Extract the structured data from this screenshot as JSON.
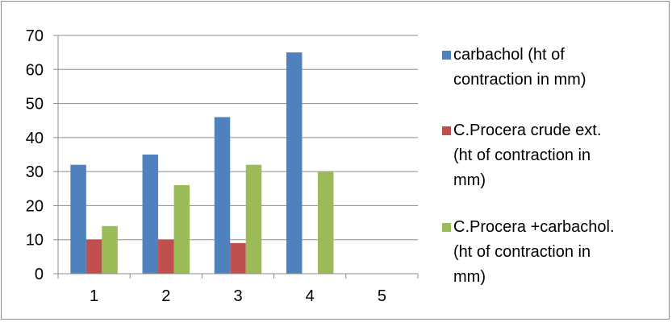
{
  "chart_data": {
    "type": "bar",
    "title": "",
    "xlabel": "",
    "ylabel": "",
    "categories": [
      "1",
      "2",
      "3",
      "4",
      "5"
    ],
    "ylim": [
      0,
      70
    ],
    "yticks": [
      "0",
      "10",
      "20",
      "30",
      "40",
      "50",
      "60",
      "70"
    ],
    "grid": "horizontal",
    "legend_position": "right",
    "series": [
      {
        "name": "carbachol (ht of contraction in mm)",
        "legend_lines": [
          "carbachol (ht of",
          "contraction in mm)"
        ],
        "color": "#4f81bd",
        "values": [
          32,
          35,
          46,
          65,
          null
        ]
      },
      {
        "name": "C.Procera crude ext. (ht of contraction in mm)",
        "legend_lines": [
          "C.Procera crude ext.",
          "(ht of contraction in",
          "mm)"
        ],
        "color": "#c0504d",
        "values": [
          10,
          10,
          9,
          null,
          null
        ]
      },
      {
        "name": "C.Procera +carbachol. (ht of contraction in mm)",
        "legend_lines": [
          "C.Procera +carbachol.",
          "(ht of contraction in",
          "mm)"
        ],
        "color": "#9bbb59",
        "values": [
          14,
          26,
          32,
          30,
          null
        ]
      }
    ]
  }
}
